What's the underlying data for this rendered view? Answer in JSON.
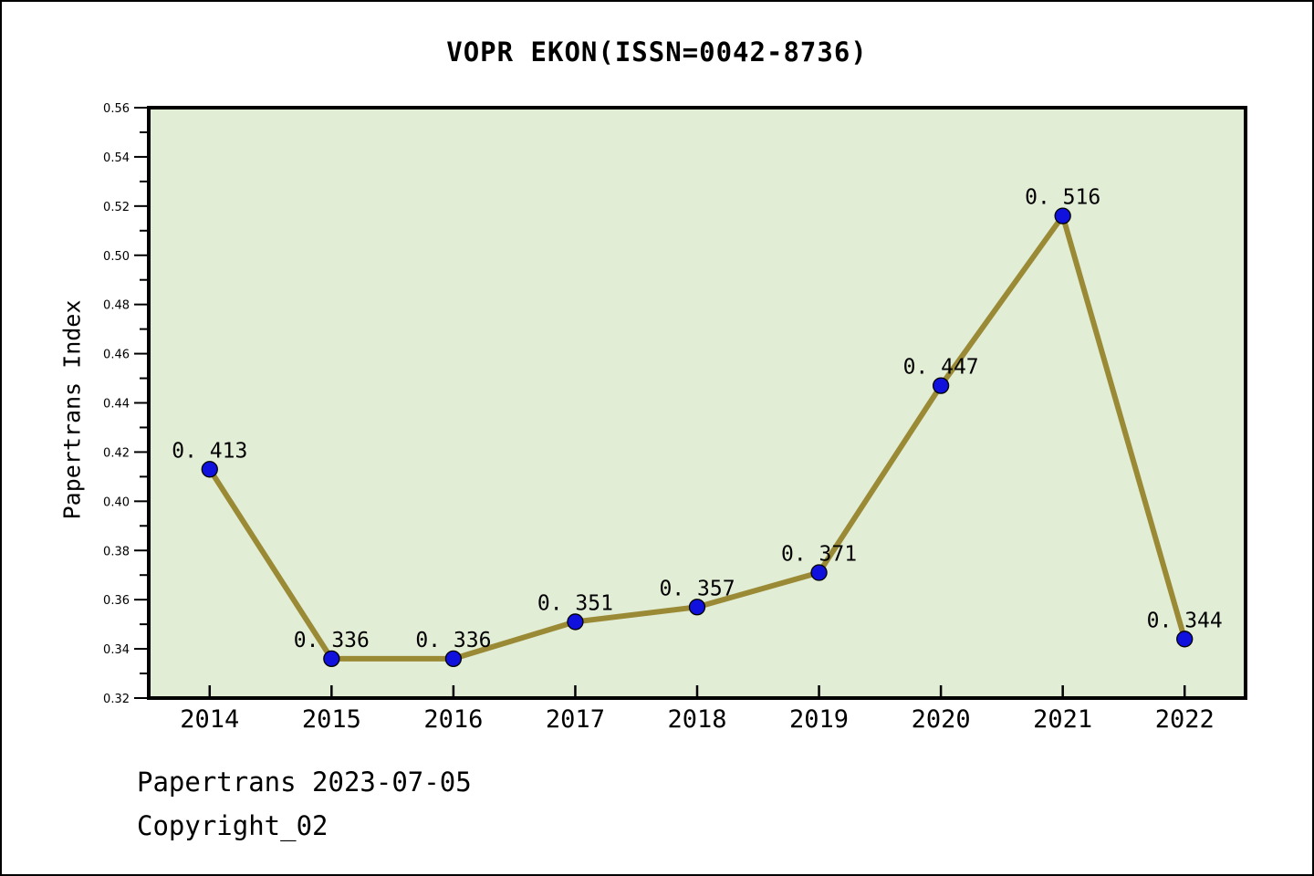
{
  "page": {
    "title": "VOPR EKON(ISSN=0042-8736)",
    "footer": {
      "line1": "Papertrans 2023-07-05",
      "line2": "Copyright_02"
    }
  },
  "chart_data": {
    "type": "line",
    "title": "VOPR EKON(ISSN=0042-8736)",
    "xlabel": "",
    "ylabel": "Papertrans Index",
    "categories": [
      "2014",
      "2015",
      "2016",
      "2017",
      "2018",
      "2019",
      "2020",
      "2021",
      "2022"
    ],
    "series": [
      {
        "name": "Papertrans Index",
        "values": [
          0.413,
          0.336,
          0.336,
          0.351,
          0.357,
          0.371,
          0.447,
          0.516,
          0.344
        ],
        "point_labels": [
          "0. 413",
          "0. 336",
          "0. 336",
          "0. 351",
          "0. 357",
          "0. 371",
          "0. 447",
          "0. 516",
          "0. 344"
        ]
      }
    ],
    "ylim": [
      0.32,
      0.56
    ],
    "yticks": [
      0.32,
      0.34,
      0.36,
      0.38,
      0.4,
      0.42,
      0.44,
      0.46,
      0.48,
      0.5,
      0.52,
      0.54,
      0.56
    ],
    "ytick_labels": [
      "0.32",
      "0.34",
      "0.36",
      "0.38",
      "0.40",
      "0.42",
      "0.44",
      "0.46",
      "0.48",
      "0.50",
      "0.52",
      "0.54",
      "0.56"
    ],
    "minor_ytick_step": 0.01,
    "grid": false,
    "legend": "none",
    "colors": {
      "line": "#9A8A35",
      "marker": "#1111DD",
      "marker_edge": "#000000",
      "plot_bg": "#E2EDD5",
      "page_bg": "#FFFFFF",
      "text": "#000000",
      "frame": "#000000"
    }
  }
}
